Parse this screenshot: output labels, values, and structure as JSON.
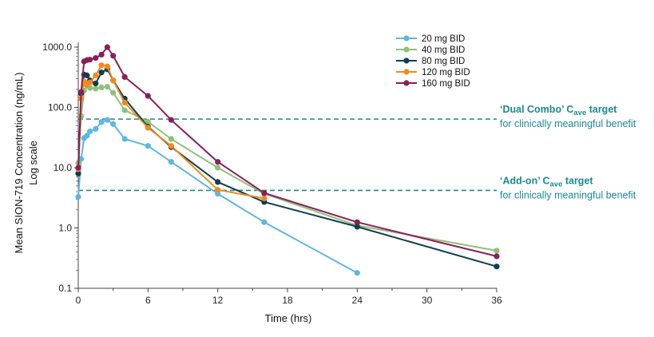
{
  "chart_data": {
    "type": "line",
    "title": "",
    "xlabel": "Time (hrs)",
    "ylabel": "Mean SION-719 Concentration (ng/mL)",
    "ylabel2": "Log scale",
    "xlim": [
      0,
      36
    ],
    "ylim": [
      0.1,
      1000
    ],
    "yscale": "log",
    "grid": false,
    "legend_position": "top-right",
    "x_ticks": [
      "0",
      "6",
      "12",
      "18",
      "24",
      "30",
      "36"
    ],
    "y_ticks": [
      "0.1",
      "1.0",
      "10.0",
      "100.0",
      "1000.0"
    ],
    "series": [
      {
        "name": "20 mg BID",
        "color": "#5fb7dd",
        "points": [
          [
            0,
            3.3
          ],
          [
            0.25,
            14
          ],
          [
            0.5,
            31
          ],
          [
            0.75,
            34
          ],
          [
            1,
            40
          ],
          [
            1.5,
            44
          ],
          [
            2,
            57
          ],
          [
            2.5,
            62
          ],
          [
            3,
            53
          ],
          [
            4,
            30
          ],
          [
            6,
            23
          ],
          [
            8,
            12.5
          ],
          [
            12,
            3.7
          ],
          [
            16,
            1.25
          ],
          [
            24,
            0.18
          ]
        ]
      },
      {
        "name": "40 mg BID",
        "color": "#8fc17a",
        "points": [
          [
            0,
            12
          ],
          [
            0.25,
            72
          ],
          [
            0.5,
            190
          ],
          [
            0.75,
            230
          ],
          [
            1,
            210
          ],
          [
            1.5,
            205
          ],
          [
            2,
            215
          ],
          [
            2.5,
            220
          ],
          [
            3,
            175
          ],
          [
            4,
            90
          ],
          [
            6,
            58
          ],
          [
            8,
            30
          ],
          [
            12,
            10
          ],
          [
            16,
            3.7
          ],
          [
            24,
            1.1
          ],
          [
            36,
            0.42
          ]
        ]
      },
      {
        "name": "80 mg BID",
        "color": "#0f3d52",
        "points": [
          [
            0,
            8
          ],
          [
            0.25,
            170
          ],
          [
            0.5,
            350
          ],
          [
            0.75,
            340
          ],
          [
            1,
            280
          ],
          [
            1.5,
            250
          ],
          [
            2,
            380
          ],
          [
            2.5,
            430
          ],
          [
            3,
            280
          ],
          [
            4,
            140
          ],
          [
            6,
            48
          ],
          [
            8,
            22
          ],
          [
            12,
            5.8
          ],
          [
            16,
            2.7
          ],
          [
            24,
            1.05
          ],
          [
            36,
            0.23
          ]
        ]
      },
      {
        "name": "120 mg BID",
        "color": "#f28a1e",
        "points": [
          [
            0,
            9.5
          ],
          [
            0.25,
            140
          ],
          [
            0.5,
            270
          ],
          [
            0.75,
            240
          ],
          [
            1,
            260
          ],
          [
            1.5,
            340
          ],
          [
            2,
            500
          ],
          [
            2.5,
            480
          ],
          [
            3,
            280
          ],
          [
            4,
            120
          ],
          [
            6,
            46
          ],
          [
            8,
            23
          ],
          [
            12,
            4.3
          ],
          [
            16,
            3.1
          ]
        ]
      },
      {
        "name": "160 mg BID",
        "color": "#8b1e5a",
        "points": [
          [
            0,
            10
          ],
          [
            0.25,
            180
          ],
          [
            0.5,
            580
          ],
          [
            0.75,
            610
          ],
          [
            1,
            620
          ],
          [
            1.5,
            660
          ],
          [
            2,
            750
          ],
          [
            2.5,
            1000
          ],
          [
            3,
            720
          ],
          [
            4,
            320
          ],
          [
            6,
            155
          ],
          [
            8,
            62
          ],
          [
            12,
            12.5
          ],
          [
            16,
            3.8
          ],
          [
            24,
            1.25
          ],
          [
            36,
            0.34
          ]
        ]
      }
    ],
    "reference_lines": [
      {
        "y": 64,
        "style": "dashed",
        "color": "#1a8a92",
        "label_title_pre": "‘Dual Combo’ C",
        "label_title_sub": "ave",
        "label_title_post": " target",
        "label_sub": "for clinically meaningful benefit"
      },
      {
        "y": 4.2,
        "style": "dashed",
        "color": "#1a8a92",
        "label_title_pre": "‘Add-on’ C",
        "label_title_sub": "ave",
        "label_title_post": " target",
        "label_sub": "for clinically meaningful benefit"
      }
    ]
  }
}
